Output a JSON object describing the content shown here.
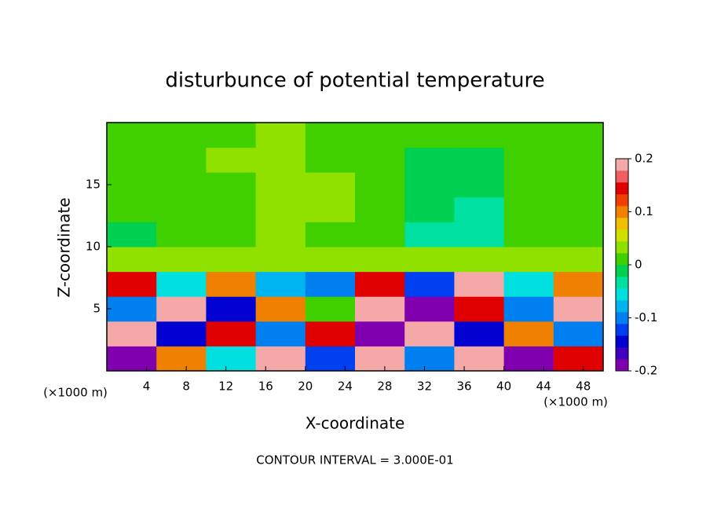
{
  "chart_data": {
    "type": "heatmap",
    "title": "disturbunce of potential temperature",
    "x_label": "X-coordinate",
    "y_label": "Z-coordinate",
    "x_unit_label": "(×1000 m)",
    "footer": "CONTOUR INTERVAL = 3.000E-01",
    "xlim": [
      0,
      50
    ],
    "xticks": [
      4,
      8,
      12,
      16,
      20,
      24,
      28,
      32,
      36,
      40,
      44,
      48
    ],
    "ylim": [
      0,
      20
    ],
    "yticks": [
      5,
      10,
      15
    ],
    "x": [
      2.5,
      7.5,
      12.5,
      17.5,
      22.5,
      27.5,
      32.5,
      37.5,
      42.5,
      47.5
    ],
    "y": [
      1,
      3,
      5,
      7,
      9,
      11,
      13,
      15,
      17,
      19
    ],
    "values": [
      [
        -0.2,
        0.1,
        -0.05,
        0.2,
        -0.12,
        0.2,
        -0.1,
        0.2,
        -0.2,
        0.15
      ],
      [
        0.2,
        -0.15,
        0.15,
        -0.1,
        0.15,
        -0.2,
        0.2,
        -0.15,
        0.1,
        -0.1
      ],
      [
        -0.1,
        0.2,
        -0.15,
        0.1,
        0.0,
        0.2,
        -0.2,
        0.15,
        -0.1,
        0.2
      ],
      [
        0.15,
        -0.05,
        0.1,
        -0.08,
        -0.1,
        0.15,
        -0.12,
        0.2,
        -0.05,
        0.1
      ],
      [
        0.03,
        0.04,
        0.03,
        0.03,
        0.03,
        0.04,
        0.03,
        0.03,
        0.03,
        0.03
      ],
      [
        -0.01,
        0.0,
        0.02,
        0.03,
        0.02,
        0.01,
        -0.03,
        -0.04,
        0.0,
        0.0
      ],
      [
        0.0,
        0.01,
        0.02,
        0.04,
        0.03,
        0.02,
        -0.02,
        -0.03,
        0.0,
        0.0
      ],
      [
        0.0,
        0.02,
        0.02,
        0.04,
        0.03,
        0.02,
        -0.02,
        -0.02,
        0.0,
        0.0
      ],
      [
        0.01,
        0.02,
        0.03,
        0.03,
        0.02,
        0.02,
        -0.01,
        -0.01,
        0.01,
        0.01
      ],
      [
        0.01,
        0.02,
        0.02,
        0.03,
        0.02,
        0.02,
        0.0,
        0.0,
        0.01,
        0.01
      ]
    ],
    "clim": [
      -0.2,
      0.2
    ],
    "cticks": [
      -0.2,
      -0.1,
      0,
      0.1,
      0.2
    ],
    "colors": [
      "#8000b0",
      "#4000c0",
      "#0000d0",
      "#0040f0",
      "#0080f0",
      "#00b4f0",
      "#00e0e0",
      "#00e0a0",
      "#00d050",
      "#40d000",
      "#90e000",
      "#d0e000",
      "#f0c000",
      "#f08000",
      "#f04000",
      "#e00000",
      "#f06060",
      "#f5a8a8"
    ]
  }
}
